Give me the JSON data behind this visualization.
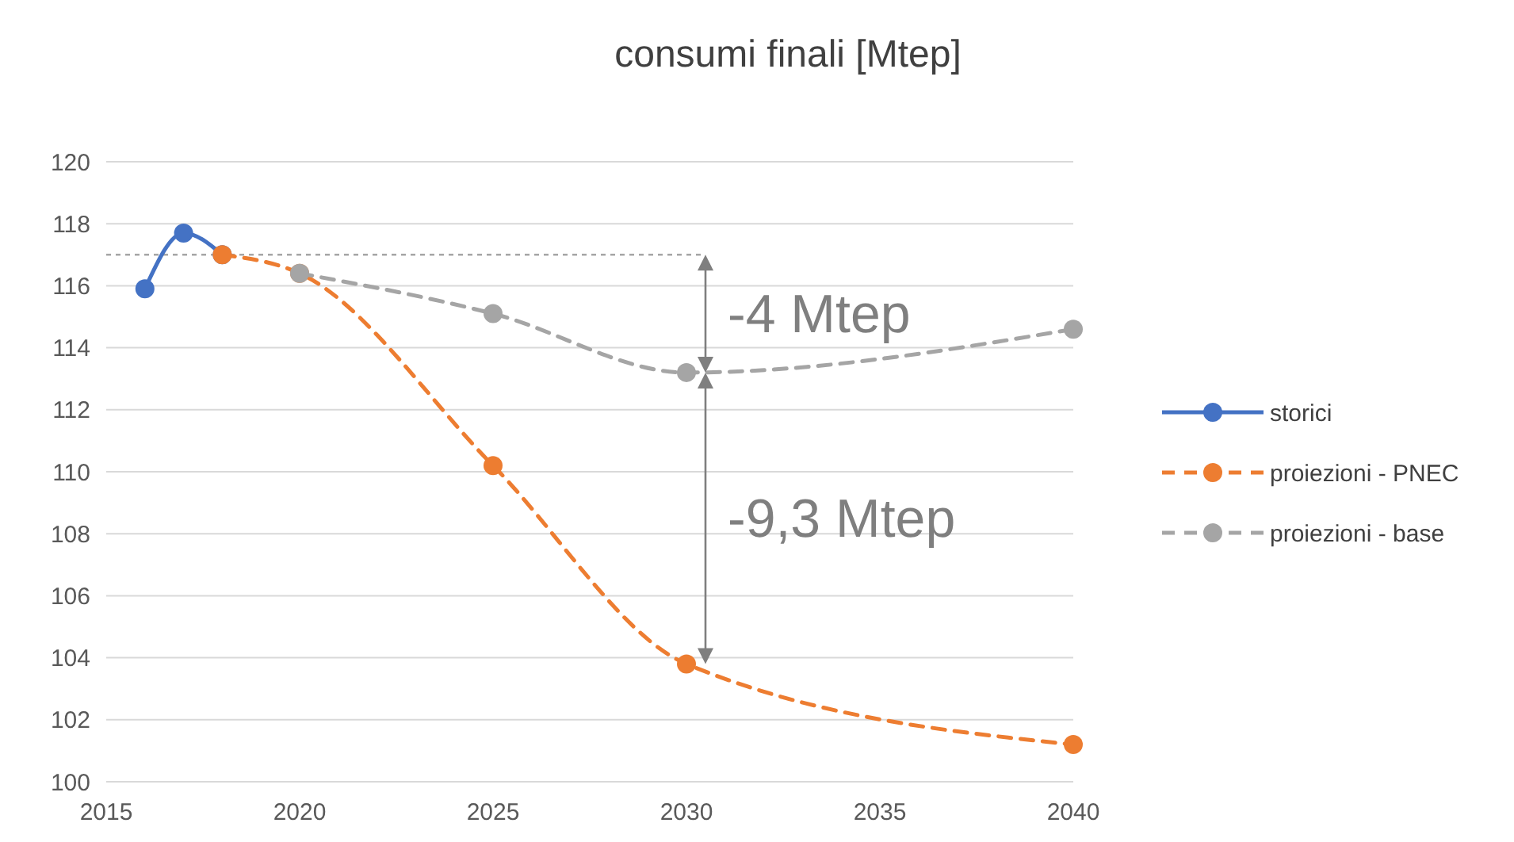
{
  "chart_data": {
    "type": "line",
    "title": "consumi finali [Mtep]",
    "series": [
      {
        "name": "storici",
        "color": "#4472c4",
        "x": [
          2016,
          2017,
          2018
        ],
        "values": [
          115.9,
          117.7,
          117.0
        ],
        "line_style": "solid"
      },
      {
        "name": "proiezioni - PNEC",
        "color": "#ed7d31",
        "x": [
          2018,
          2020,
          2025,
          2030,
          2040
        ],
        "values": [
          117.0,
          116.4,
          110.2,
          103.8,
          101.2
        ],
        "line_style": "dashed"
      },
      {
        "name": "proiezioni - base",
        "color": "#a5a5a5",
        "x": [
          2020,
          2025,
          2030,
          2040
        ],
        "values": [
          116.4,
          115.1,
          113.2,
          114.6
        ],
        "line_style": "dashed"
      }
    ],
    "xlim": [
      2015,
      2040
    ],
    "xticks": [
      2015,
      2020,
      2025,
      2030,
      2035,
      2040
    ],
    "ylim": [
      100,
      120
    ],
    "yticks": [
      100,
      102,
      104,
      106,
      108,
      110,
      112,
      114,
      116,
      118,
      120
    ],
    "grid": "y",
    "legend": "right",
    "marker": "circle",
    "ref_lines": [
      {
        "axis": "y",
        "value": 117,
        "color": "#a5a5a5",
        "line_style": "dashed"
      }
    ],
    "annotations": [
      "-4 Mtep",
      "-9,3 Mtep"
    ]
  }
}
